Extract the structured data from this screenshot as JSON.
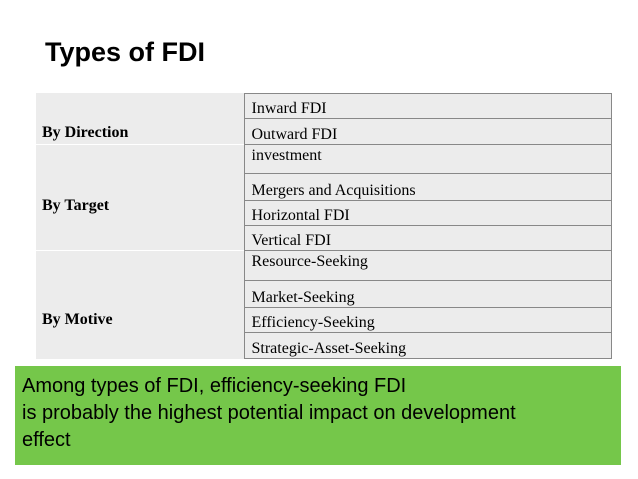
{
  "slide": {
    "title": "Types of FDI"
  },
  "table": {
    "groups": [
      {
        "category": "By Direction",
        "items": [
          "Inward FDI",
          "Outward FDI"
        ]
      },
      {
        "category": "By Target",
        "items": [
          "investment",
          "Mergers and Acquisitions",
          "Horizontal FDI",
          "Vertical FDI"
        ]
      },
      {
        "category": "By Motive",
        "items": [
          "Resource-Seeking",
          "Market-Seeking",
          "Efficiency-Seeking",
          "Strategic-Asset-Seeking"
        ]
      }
    ]
  },
  "note": {
    "lines": [
      "Among types of FDI, efficiency-seeking FDI",
      "is probably the highest potential impact on development",
      "effect"
    ],
    "background_color": "#75c74a"
  }
}
